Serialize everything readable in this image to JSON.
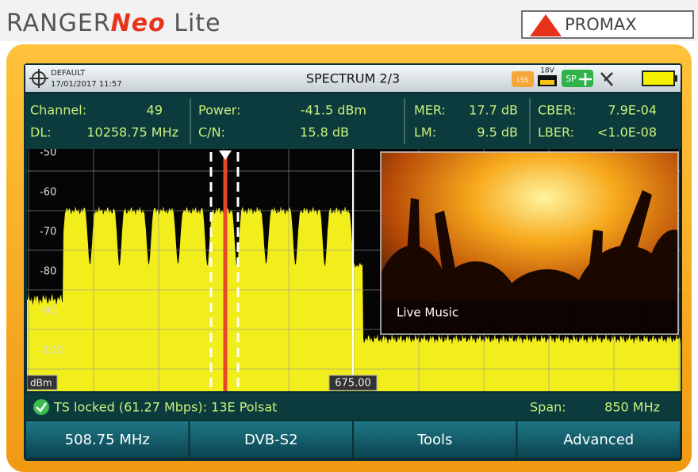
{
  "brand": {
    "ranger": "RANGER",
    "neo": "Neo",
    "lite": " Lite",
    "logo": "PROMAX"
  },
  "status_bar": {
    "profile": "DEFAULT",
    "datetime": "17/01/2017 11:57",
    "mode": "SPECTRUM 2/3",
    "lss": "LSS",
    "lnb_voltage": "18V",
    "sp": "SP"
  },
  "measurements": [
    [
      {
        "label": "Channel:",
        "value": "49"
      },
      {
        "label": "Power:",
        "value": "-41.5 dBm"
      },
      {
        "label": "MER:",
        "value": "17.7 dB"
      },
      {
        "label": "CBER:",
        "value": "7.9E-04"
      }
    ],
    [
      {
        "label": "DL:",
        "value": "10258.75 MHz"
      },
      {
        "label": "C/N:",
        "value": "15.8 dB"
      },
      {
        "label": "LM:",
        "value": "9.5 dB"
      },
      {
        "label": "LBER:",
        "value": "<1.0E-08"
      }
    ]
  ],
  "spectrum": {
    "y_labels": [
      "-50",
      "-60",
      "-70",
      "-80",
      "-90",
      "-100"
    ],
    "unit": "dBm",
    "marker": "675.00"
  },
  "video": {
    "caption": "Live Music"
  },
  "lock_status": "TS locked (61.27 Mbps): 13E Polsat",
  "span": {
    "label": "Span:",
    "value": "850 MHz"
  },
  "softkeys": [
    "508.75 MHz",
    "DVB-S2",
    "Tools",
    "Advanced"
  ]
}
